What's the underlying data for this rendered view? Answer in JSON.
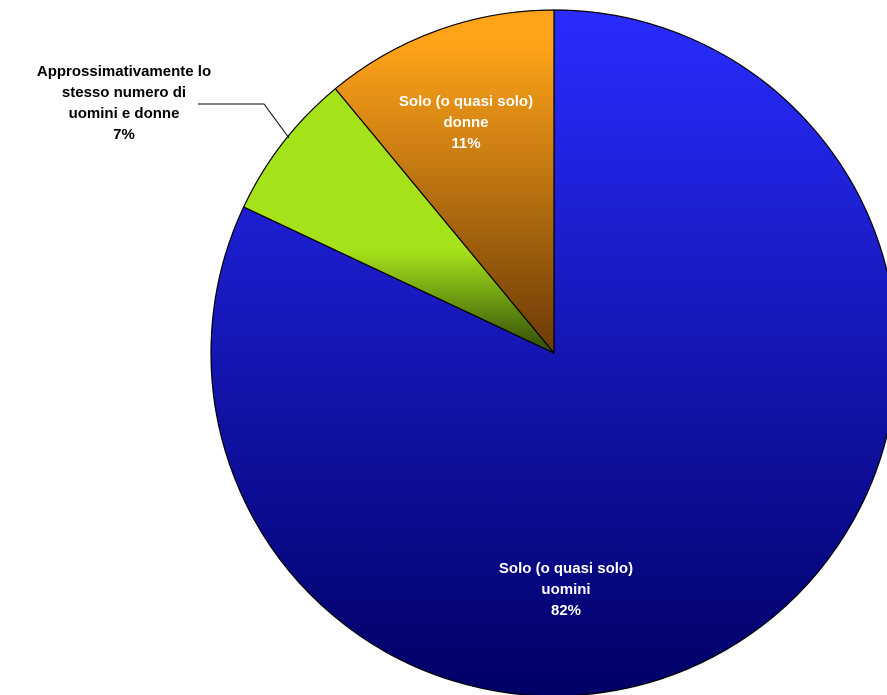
{
  "chart_data": {
    "type": "pie",
    "title": "",
    "start_angle_deg": 0,
    "direction": "clockwise",
    "slices": [
      {
        "label_lines": [
          "Solo (o quasi solo)",
          "uomini"
        ],
        "percent_label": "82%",
        "value": 82,
        "color_light": "#2a2cff",
        "color_dark": "#000066",
        "label_color": "#ffffff",
        "label_placement": "inside"
      },
      {
        "label_lines": [
          "Approssimativamente lo",
          "stesso numero di",
          "uomini e donne"
        ],
        "percent_label": "7%",
        "value": 7,
        "color_light": "#a6e21a",
        "color_dark": "#2e4a08",
        "label_color": "#000000",
        "label_placement": "outside"
      },
      {
        "label_lines": [
          "Solo (o quasi solo)",
          "donne"
        ],
        "percent_label": "11%",
        "value": 11,
        "color_light": "#ffa319",
        "color_dark": "#6a3a06",
        "label_color": "#ffffff",
        "label_placement": "inside"
      }
    ]
  }
}
